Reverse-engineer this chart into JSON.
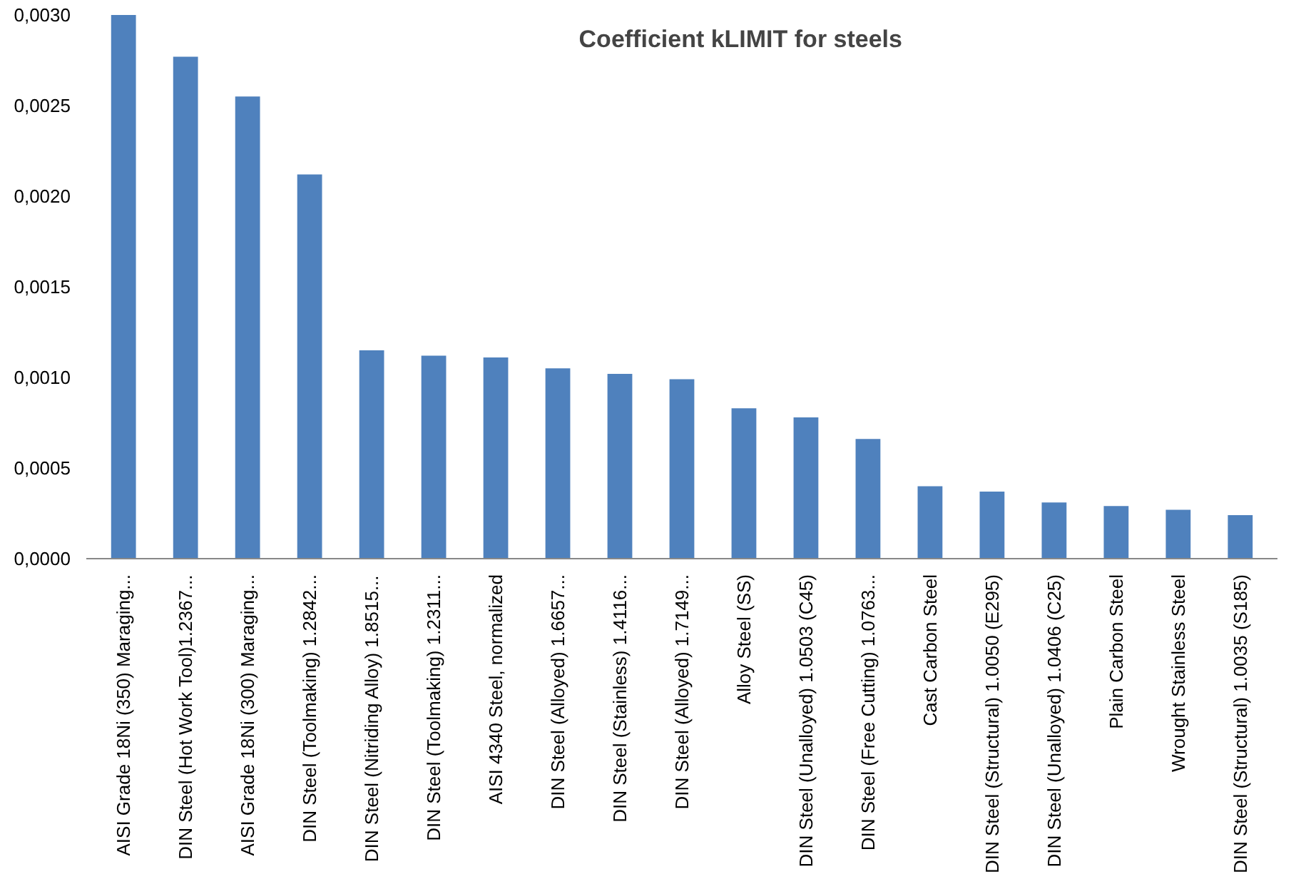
{
  "chart_data": {
    "type": "bar",
    "title": "Coefficient  kLIMIT for steels",
    "categories": [
      "AISI Grade 18Ni (350) Maraging...",
      "DIN Steel (Hot Work Tool)1.2367...",
      "AISI Grade 18Ni (300) Maraging...",
      "DIN Steel (Toolmaking) 1.2842...",
      "DIN Steel (Nitriding Alloy) 1.8515...",
      "DIN Steel (Toolmaking) 1.2311...",
      "AISI 4340 Steel, normalized",
      "DIN Steel (Alloyed) 1.6657...",
      "DIN Steel (Stainless) 1.4116...",
      "DIN Steel (Alloyed) 1.7149...",
      "Alloy Steel (SS)",
      "DIN Steel (Unalloyed) 1.0503 (C45)",
      "DIN Steel (Free Cutting) 1.0763...",
      "Cast Carbon Steel",
      "DIN Steel (Structural) 1.0050 (E295)",
      "DIN Steel (Unalloyed) 1.0406 (C25)",
      "Plain Carbon Steel",
      "Wrought Stainless Steel",
      "DIN Steel (Structural) 1.0035 (S185)"
    ],
    "values": [
      0.003,
      0.00277,
      0.00255,
      0.00212,
      0.00115,
      0.00112,
      0.00111,
      0.00105,
      0.00102,
      0.00099,
      0.00083,
      0.00078,
      0.00066,
      0.0004,
      0.00037,
      0.00031,
      0.00029,
      0.00027,
      0.00024
    ],
    "color": "#4f81bd",
    "ylim": [
      0,
      0.003
    ],
    "yticks": [
      {
        "value": 0,
        "label": "0,0000"
      },
      {
        "value": 0.0005,
        "label": "0,0005"
      },
      {
        "value": 0.001,
        "label": "0,0010"
      },
      {
        "value": 0.0015,
        "label": "0,0015"
      },
      {
        "value": 0.002,
        "label": "0,0020"
      },
      {
        "value": 0.0025,
        "label": "0,0025"
      },
      {
        "value": 0.003,
        "label": "0,0030"
      }
    ]
  }
}
